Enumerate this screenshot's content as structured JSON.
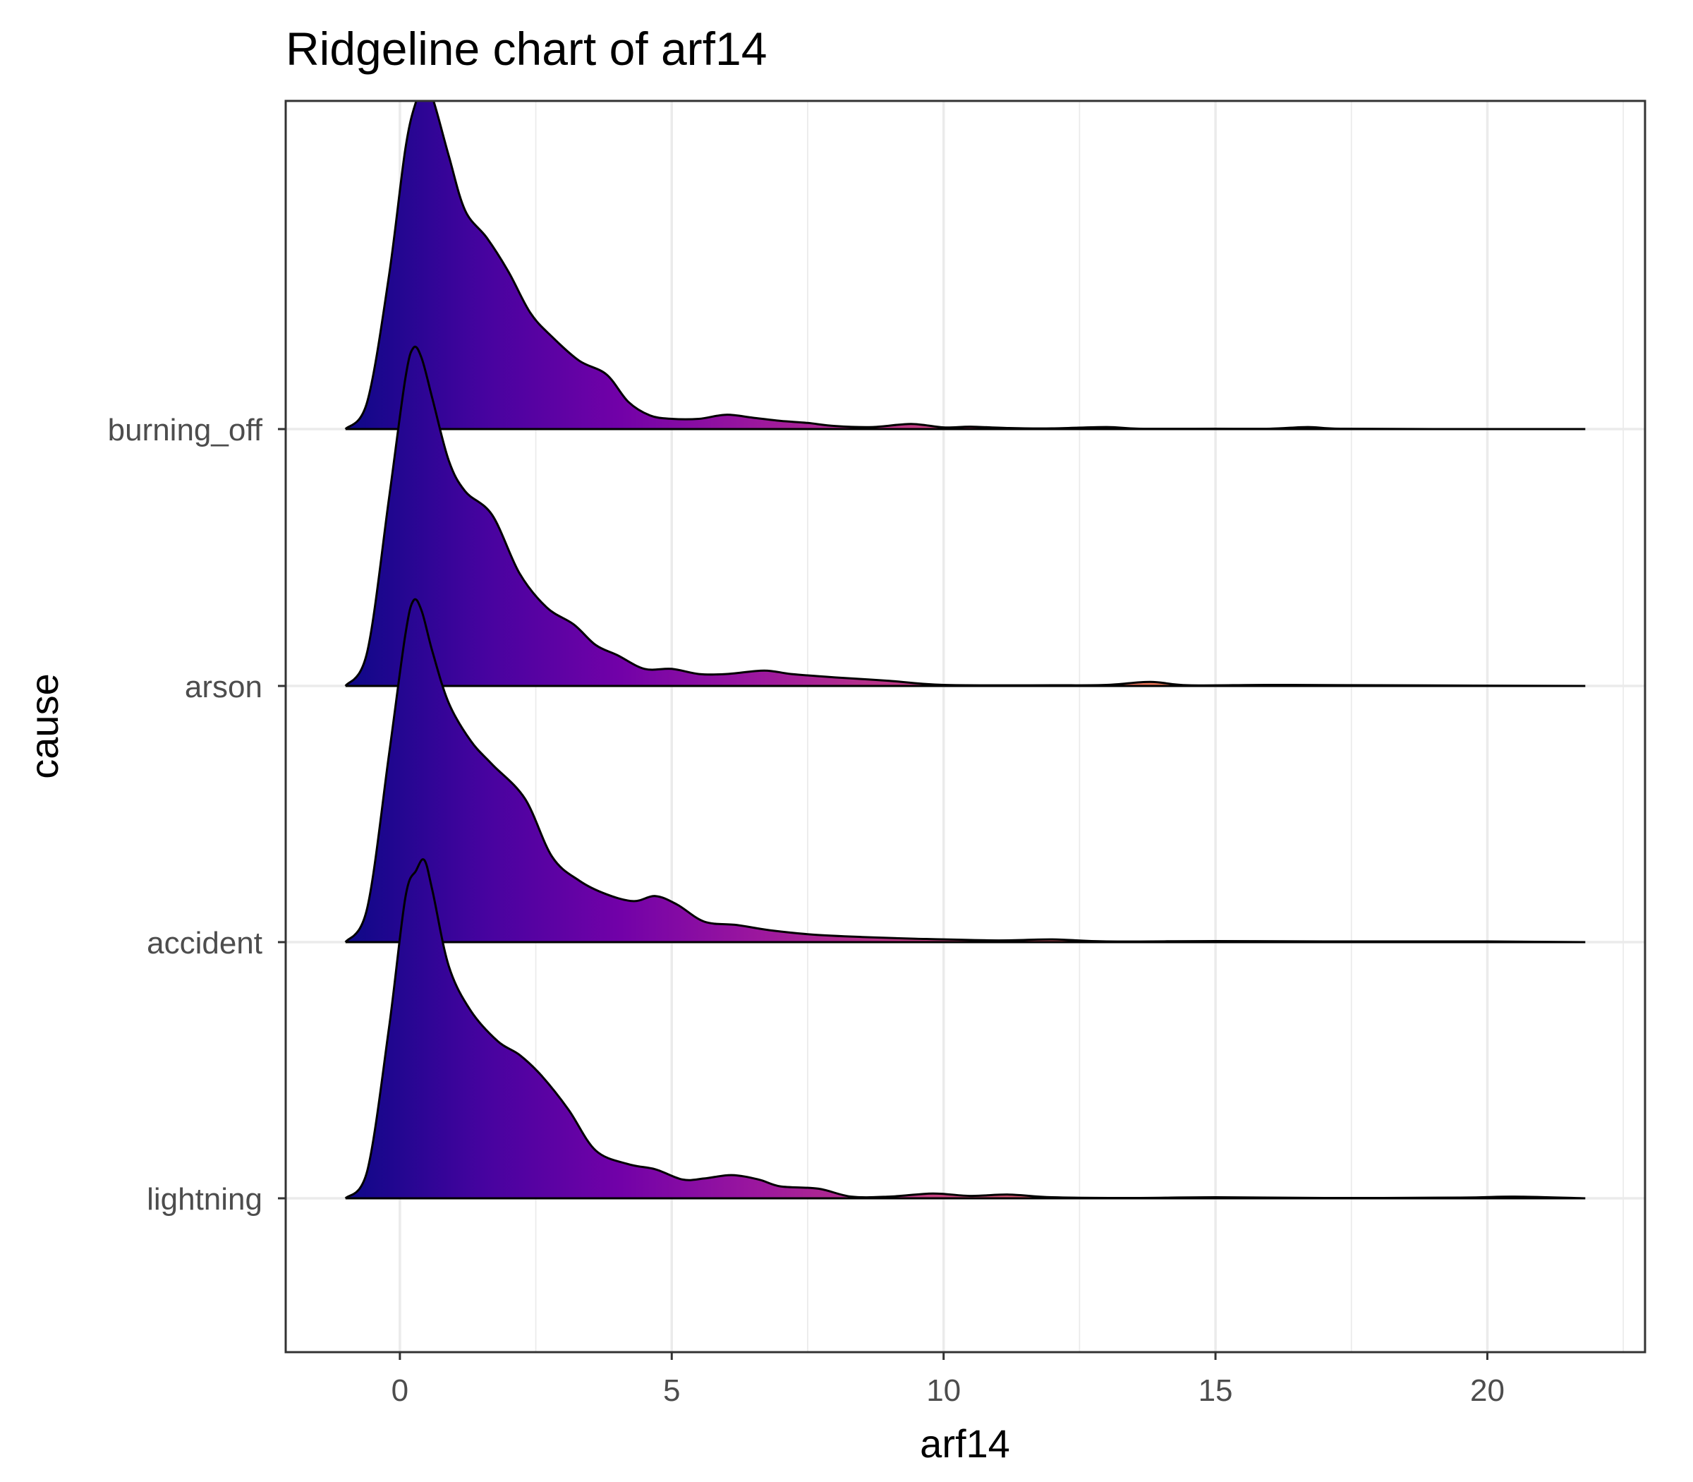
{
  "chart_data": {
    "type": "ridgeline",
    "title": "Ridgeline chart of arf14",
    "xlabel": "arf14",
    "ylabel": "cause",
    "xlim": [
      -2.1,
      22.9
    ],
    "x_ticks": [
      0,
      5,
      10,
      15,
      20
    ],
    "x_tick_labels": [
      "0",
      "5",
      "10",
      "15",
      "20"
    ],
    "density_range": [
      -1.0,
      21.8
    ],
    "fill_gradient": {
      "low_value": -1.0,
      "high_value": 21.8,
      "stops": [
        "#0d0887",
        "#46039f",
        "#7201a8",
        "#9c179e",
        "#bd3786",
        "#d8576b",
        "#ed7953",
        "#fb9f3a",
        "#fdca26",
        "#f0f921"
      ]
    },
    "categories": [
      "lightning",
      "accident",
      "arson",
      "burning_off"
    ],
    "series": [
      {
        "name": "burning_off",
        "x": [
          -1.0,
          -0.6,
          -0.2,
          0.1,
          0.3,
          0.45,
          0.6,
          0.9,
          1.2,
          1.6,
          2.0,
          2.4,
          2.8,
          3.3,
          3.8,
          4.2,
          4.6,
          5.0,
          5.5,
          6.0,
          6.5,
          7.0,
          7.5,
          8.0,
          8.7,
          9.4,
          10.0,
          10.5,
          11.2,
          12.0,
          13.0,
          13.6,
          15.0,
          16.0,
          16.7,
          17.3,
          19.0,
          21.8
        ],
        "density": [
          0.0,
          0.08,
          0.45,
          0.82,
          0.96,
          1.0,
          0.97,
          0.8,
          0.64,
          0.56,
          0.46,
          0.34,
          0.27,
          0.2,
          0.16,
          0.08,
          0.04,
          0.03,
          0.03,
          0.042,
          0.033,
          0.024,
          0.018,
          0.009,
          0.006,
          0.015,
          0.005,
          0.007,
          0.003,
          0.002,
          0.006,
          0.001,
          0.001,
          0.001,
          0.006,
          0.001,
          0.0,
          0.0
        ]
      },
      {
        "name": "arson",
        "x": [
          -1.0,
          -0.6,
          -0.2,
          0.1,
          0.25,
          0.4,
          0.6,
          0.9,
          1.2,
          1.7,
          2.2,
          2.7,
          3.2,
          3.6,
          4.0,
          4.5,
          5.0,
          5.5,
          6.0,
          6.7,
          7.2,
          8.0,
          9.0,
          10.0,
          12.0,
          13.0,
          13.8,
          14.5,
          16.0,
          18.0,
          21.8
        ],
        "density": [
          0.0,
          0.1,
          0.55,
          0.9,
          0.99,
          0.96,
          0.84,
          0.66,
          0.57,
          0.5,
          0.33,
          0.23,
          0.18,
          0.12,
          0.09,
          0.05,
          0.05,
          0.035,
          0.035,
          0.045,
          0.035,
          0.025,
          0.015,
          0.003,
          0.002,
          0.003,
          0.012,
          0.002,
          0.003,
          0.002,
          0.0
        ]
      },
      {
        "name": "accident",
        "x": [
          -1.0,
          -0.6,
          -0.2,
          0.1,
          0.25,
          0.4,
          0.6,
          0.9,
          1.3,
          1.7,
          2.3,
          2.8,
          3.3,
          3.8,
          4.3,
          4.7,
          5.1,
          5.6,
          6.2,
          6.8,
          7.6,
          8.5,
          9.5,
          11.0,
          12.0,
          13.0,
          15.0,
          17.0,
          20.0,
          21.8
        ],
        "density": [
          0.0,
          0.1,
          0.55,
          0.9,
          1.0,
          0.97,
          0.85,
          0.7,
          0.59,
          0.52,
          0.42,
          0.25,
          0.18,
          0.14,
          0.12,
          0.135,
          0.11,
          0.06,
          0.05,
          0.035,
          0.022,
          0.015,
          0.01,
          0.005,
          0.008,
          0.002,
          0.003,
          0.002,
          0.002,
          0.0
        ]
      },
      {
        "name": "lightning",
        "x": [
          -1.0,
          -0.6,
          -0.2,
          0.1,
          0.3,
          0.45,
          0.6,
          0.9,
          1.3,
          1.8,
          2.2,
          2.6,
          3.1,
          3.6,
          4.2,
          4.7,
          5.2,
          5.6,
          6.1,
          6.6,
          7.0,
          7.7,
          8.3,
          9.0,
          9.8,
          10.5,
          11.2,
          12.0,
          13.5,
          15.0,
          17.0,
          19.5,
          20.5,
          21.8
        ],
        "density": [
          0.0,
          0.08,
          0.5,
          0.88,
          0.96,
          0.99,
          0.9,
          0.68,
          0.55,
          0.46,
          0.42,
          0.36,
          0.26,
          0.14,
          0.1,
          0.085,
          0.055,
          0.058,
          0.068,
          0.055,
          0.035,
          0.028,
          0.005,
          0.005,
          0.014,
          0.007,
          0.011,
          0.003,
          0.001,
          0.003,
          0.001,
          0.002,
          0.005,
          0.0
        ]
      }
    ]
  }
}
